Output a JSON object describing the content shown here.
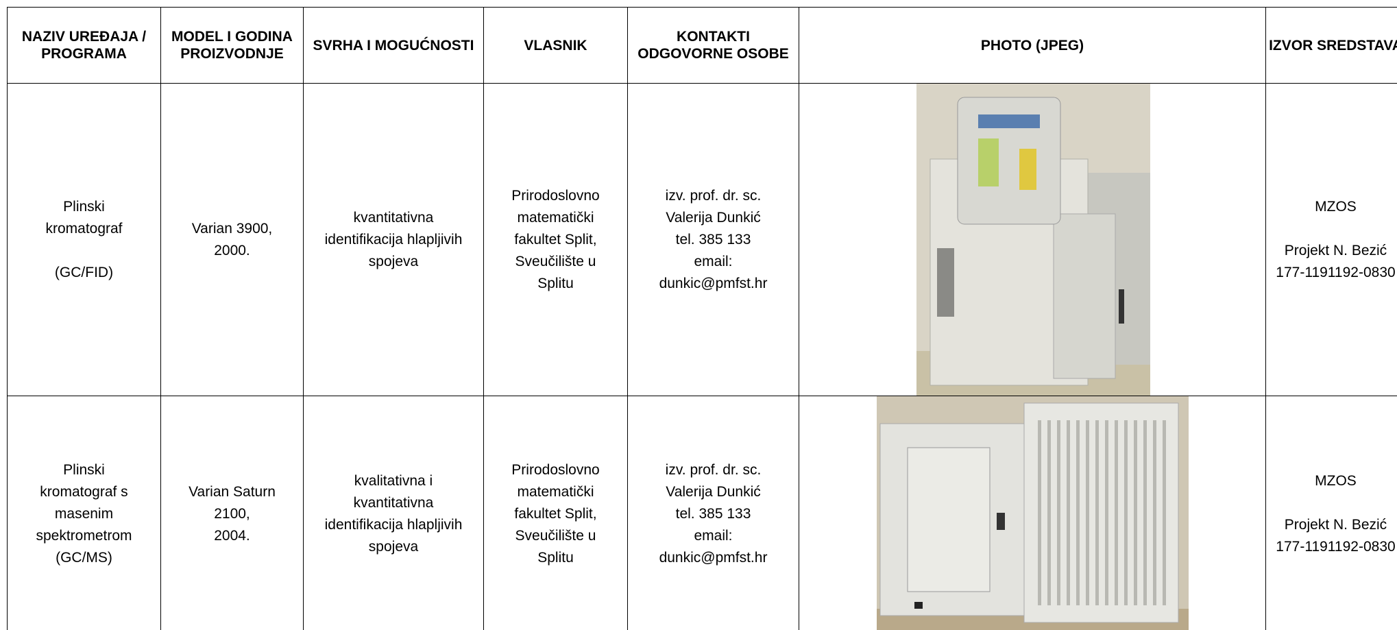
{
  "table": {
    "header": [
      [
        "NAZIV UREĐAJA / PROGRAMA"
      ],
      [
        "MODEL I GODINA PROIZVODNJE"
      ],
      [
        "SVRHA I MOGUĆNOSTI"
      ],
      [
        "VLASNIK"
      ],
      [
        "KONTAKTI ODGOVORNE OSOBE"
      ],
      [
        "PHOTO (JPEG)"
      ],
      [
        "IZVOR SREDSTAVA"
      ]
    ],
    "rows": [
      [
        [
          [
            "Plinski",
            "kromatograf"
          ],
          [
            "(GC/FID)"
          ]
        ],
        [
          [
            "Varian 3900,",
            "2000."
          ]
        ],
        [
          [
            "kvantitativna",
            "identifikacija hlapljivih",
            "spojeva"
          ]
        ],
        [
          [
            "Prirodoslovno",
            "matematički",
            "fakultet Split,",
            "Sveučilište u",
            "Splitu"
          ]
        ],
        [
          [
            "izv. prof. dr. sc.",
            "Valerija Dunkić",
            "tel. 385 133",
            "email:",
            "dunkic@pmfst.hr"
          ]
        ],
        null,
        [
          [
            "MZOS"
          ],
          [
            "Projekt N. Bezić",
            "177-1191192-0830"
          ]
        ]
      ],
      [
        [
          [
            "Plinski",
            "kromatograf s",
            "masenim",
            "spektrometrom",
            "(GC/MS)"
          ]
        ],
        [
          [
            "Varian Saturn",
            "2100,",
            "2004."
          ]
        ],
        [
          [
            "kvalitativna i",
            "kvantitativna",
            "identifikacija hlapljivih",
            "spojeva"
          ]
        ],
        [
          [
            "Prirodoslovno",
            "matematički",
            "fakultet Split,",
            "Sveučilište u",
            "Splitu"
          ]
        ],
        [
          [
            "izv. prof. dr. sc.",
            "Valerija Dunkić",
            "tel. 385 133",
            "email:",
            "dunkic@pmfst.hr"
          ]
        ],
        null,
        [
          [
            "MZOS"
          ],
          [
            "Projekt N. Bezić",
            "177-1191192-0830"
          ]
        ]
      ]
    ]
  }
}
